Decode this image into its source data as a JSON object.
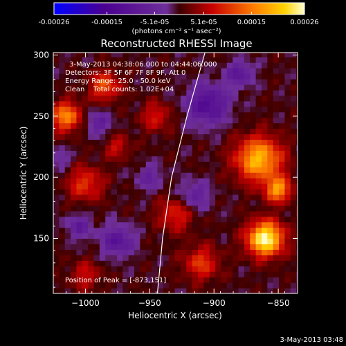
{
  "chart_data": {
    "type": "heatmap",
    "title": "Reconstructed RHESSI Image",
    "xlabel": "Heliocentric X (arcsec)",
    "ylabel": "Heliocentric Y (arcsec)",
    "xlim": [
      -1025,
      -835
    ],
    "ylim": [
      105,
      302
    ],
    "x_ticks": [
      -1000,
      -950,
      -900,
      -850
    ],
    "y_ticks": [
      150,
      200,
      250,
      300
    ],
    "colorbar": {
      "min": -0.00026,
      "max": 0.00026,
      "ticks": [
        -0.00026,
        -0.00015,
        -5.1e-05,
        5.1e-05,
        0.00015,
        0.00026
      ],
      "tick_labels": [
        "-0.00026",
        "-0.00015",
        "-5.1e-05",
        "5.1e-05",
        "0.00015",
        "0.00026"
      ],
      "unit_label": "(photons cm⁻² s⁻¹ asec⁻²)"
    },
    "info_lines": [
      "3-May-2013 04:38:06.000 to 04:44:06.000",
      "Detectors: 3F 5F 6F 7F 8F 9F, Att 0",
      "Energy Range: 25.0 - 50.0 keV",
      "Clean    Total counts: 1.02E+04"
    ],
    "peak_label": "Position of Peak = [-873,151]",
    "peak": [
      -873,
      151
    ],
    "timestamp": "3-May-2013 03:48",
    "hot_regions": [
      {
        "x": -860,
        "y": 150,
        "r": 14,
        "v": 0.00026
      },
      {
        "x": -865,
        "y": 215,
        "r": 18,
        "v": 0.0002
      },
      {
        "x": -850,
        "y": 190,
        "r": 10,
        "v": 0.00017
      },
      {
        "x": -1015,
        "y": 250,
        "r": 12,
        "v": 0.00016
      },
      {
        "x": -985,
        "y": 275,
        "r": 12,
        "v": 0.00012
      },
      {
        "x": -1000,
        "y": 195,
        "r": 14,
        "v": 0.0001
      },
      {
        "x": -930,
        "y": 170,
        "r": 14,
        "v": 9e-05
      },
      {
        "x": -910,
        "y": 130,
        "r": 14,
        "v": 0.0001
      },
      {
        "x": -1000,
        "y": 120,
        "r": 12,
        "v": 7e-05
      },
      {
        "x": -945,
        "y": 250,
        "r": 12,
        "v": 8e-05
      },
      {
        "x": -975,
        "y": 225,
        "r": 10,
        "v": 7e-05
      }
    ],
    "cold_regions": [
      {
        "x": -905,
        "y": 260,
        "r": 16,
        "v": -0.00013
      },
      {
        "x": -880,
        "y": 285,
        "r": 10,
        "v": -0.0001
      },
      {
        "x": -975,
        "y": 148,
        "r": 12,
        "v": -0.00011
      },
      {
        "x": -1005,
        "y": 160,
        "r": 10,
        "v": -8e-05
      },
      {
        "x": -990,
        "y": 245,
        "r": 10,
        "v": -8e-05
      },
      {
        "x": -950,
        "y": 200,
        "r": 10,
        "v": -7e-05
      },
      {
        "x": -915,
        "y": 185,
        "r": 12,
        "v": -8e-05
      },
      {
        "x": -1020,
        "y": 215,
        "r": 8,
        "v": -5e-05
      }
    ],
    "limb": [
      [
        -944,
        105
      ],
      [
        -940,
        150
      ],
      [
        -933,
        200
      ],
      [
        -921,
        250
      ],
      [
        -907,
        302
      ]
    ]
  }
}
